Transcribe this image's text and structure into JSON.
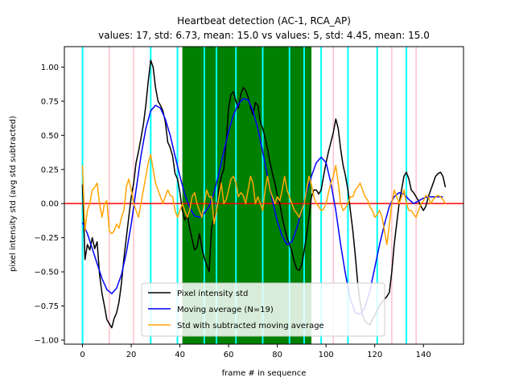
{
  "chart_data": {
    "type": "line",
    "title": "Heartbeat detection (AC-1, RCA_AP)",
    "subtitle": "values: 17, std: 6.73, mean: 15.0 vs values: 5, std: 4.45, mean: 15.0",
    "xlabel": "frame # in sequence",
    "ylabel": "pixel intensity std (avg std subtracted)",
    "xlim": [
      -7.45,
      156.45
    ],
    "ylim": [
      -1.03,
      1.15
    ],
    "x_ticks": [
      0,
      20,
      40,
      60,
      80,
      100,
      120,
      140
    ],
    "y_ticks": [
      -1.0,
      -0.75,
      -0.5,
      -0.25,
      0.0,
      0.25,
      0.5,
      0.75,
      1.0
    ],
    "x_tick_labels": [
      "0",
      "20",
      "40",
      "60",
      "80",
      "100",
      "120",
      "140"
    ],
    "y_tick_labels": [
      "−1.00",
      "−0.75",
      "−0.50",
      "−0.25",
      "0.00",
      "0.25",
      "0.50",
      "0.75",
      "1.00"
    ],
    "grid": false,
    "legend_position": "bottom-center",
    "green_band": [
      41,
      94
    ],
    "cyan_lines": [
      0,
      28,
      39,
      50,
      55,
      63,
      74,
      85,
      91,
      98,
      109,
      121,
      133
    ],
    "pink_lines": [
      11,
      21,
      103,
      127,
      137
    ],
    "zero_line": 0.0,
    "colors": {
      "raw": "#000000",
      "moving_average": "#0000ff",
      "residual": "#ffa500",
      "cyan_lines": "#00ffff",
      "pink_lines": "#ffc0cb",
      "zero_line": "#ff0000",
      "band": "#008000"
    },
    "series": [
      {
        "name": "Pixel intensity std",
        "x": [
          0,
          1,
          2,
          3,
          4,
          5,
          6,
          7,
          8,
          9,
          10,
          11,
          12,
          13,
          14,
          15,
          16,
          17,
          18,
          19,
          20,
          21,
          22,
          23,
          24,
          25,
          26,
          27,
          28,
          29,
          30,
          31,
          32,
          33,
          34,
          35,
          36,
          37,
          38,
          39,
          40,
          41,
          42,
          43,
          44,
          45,
          46,
          47,
          48,
          49,
          50,
          51,
          52,
          53,
          54,
          55,
          56,
          57,
          58,
          59,
          60,
          61,
          62,
          63,
          64,
          65,
          66,
          67,
          68,
          69,
          70,
          71,
          72,
          73,
          74,
          75,
          76,
          77,
          78,
          79,
          80,
          81,
          82,
          83,
          84,
          85,
          86,
          87,
          88,
          89,
          90,
          91,
          92,
          93,
          94,
          95,
          96,
          97,
          98,
          99,
          100,
          101,
          102,
          103,
          104,
          105,
          106,
          107,
          108,
          109,
          110,
          111,
          112,
          113,
          114,
          115,
          116,
          117,
          118,
          119,
          120,
          121,
          122,
          123,
          124,
          125,
          126,
          127,
          128,
          129,
          130,
          131,
          132,
          133,
          134,
          135,
          136,
          137,
          138,
          139,
          140,
          141,
          142,
          143,
          144,
          145,
          146,
          147,
          148,
          149
        ],
        "y": [
          0.14,
          -0.41,
          -0.3,
          -0.34,
          -0.25,
          -0.33,
          -0.28,
          -0.52,
          -0.66,
          -0.75,
          -0.85,
          -0.88,
          -0.91,
          -0.84,
          -0.8,
          -0.72,
          -0.58,
          -0.4,
          -0.25,
          -0.1,
          0.05,
          0.15,
          0.3,
          0.38,
          0.48,
          0.58,
          0.72,
          0.9,
          1.05,
          1.0,
          0.85,
          0.75,
          0.72,
          0.68,
          0.6,
          0.45,
          0.41,
          0.35,
          0.22,
          0.18,
          0.08,
          -0.05,
          -0.12,
          -0.08,
          -0.18,
          -0.26,
          -0.34,
          -0.32,
          -0.22,
          -0.32,
          -0.4,
          -0.45,
          -0.5,
          -0.18,
          -0.1,
          -0.05,
          0.1,
          0.2,
          0.25,
          0.45,
          0.7,
          0.8,
          0.82,
          0.75,
          0.7,
          0.8,
          0.85,
          0.83,
          0.78,
          0.7,
          0.65,
          0.74,
          0.72,
          0.6,
          0.55,
          0.48,
          0.4,
          0.3,
          0.22,
          0.15,
          0.06,
          0.0,
          -0.1,
          -0.18,
          -0.25,
          -0.3,
          -0.35,
          -0.43,
          -0.48,
          -0.49,
          -0.45,
          -0.35,
          -0.23,
          -0.1,
          0.05,
          0.1,
          0.1,
          0.07,
          0.1,
          0.2,
          0.3,
          0.38,
          0.45,
          0.52,
          0.62,
          0.55,
          0.4,
          0.28,
          0.2,
          0.1,
          -0.05,
          -0.2,
          -0.38,
          -0.58,
          -0.72,
          -0.82,
          -0.86,
          -0.88,
          -0.89,
          -0.85,
          -0.82,
          -0.78,
          -0.75,
          -0.72,
          -0.7,
          -0.68,
          -0.65,
          -0.5,
          -0.3,
          -0.15,
          0.0,
          0.1,
          0.2,
          0.23,
          0.18,
          0.1,
          0.08,
          0.05,
          0.02,
          -0.02,
          -0.05,
          -0.02,
          0.05,
          0.1,
          0.15,
          0.2,
          0.22,
          0.23,
          0.2,
          0.12
        ]
      },
      {
        "name": "Moving average (N=19)",
        "x": [
          0,
          2,
          4,
          6,
          8,
          10,
          12,
          14,
          16,
          18,
          20,
          22,
          24,
          26,
          28,
          30,
          32,
          34,
          36,
          38,
          40,
          42,
          44,
          46,
          48,
          50,
          52,
          54,
          56,
          58,
          60,
          62,
          64,
          66,
          68,
          70,
          72,
          74,
          76,
          78,
          80,
          82,
          84,
          86,
          88,
          90,
          92,
          94,
          96,
          98,
          100,
          102,
          104,
          106,
          108,
          110,
          112,
          114,
          116,
          118,
          120,
          122,
          124,
          126,
          128,
          130,
          132,
          134,
          136,
          138,
          140,
          142,
          144,
          146,
          148
        ],
        "y": [
          -0.14,
          -0.22,
          -0.33,
          -0.44,
          -0.55,
          -0.63,
          -0.66,
          -0.62,
          -0.52,
          -0.36,
          -0.15,
          0.1,
          0.35,
          0.55,
          0.68,
          0.72,
          0.7,
          0.62,
          0.5,
          0.35,
          0.2,
          0.07,
          -0.03,
          -0.09,
          -0.1,
          -0.07,
          -0.02,
          0.08,
          0.22,
          0.38,
          0.53,
          0.65,
          0.73,
          0.77,
          0.76,
          0.68,
          0.55,
          0.38,
          0.2,
          0.02,
          -0.13,
          -0.24,
          -0.3,
          -0.28,
          -0.18,
          -0.05,
          0.08,
          0.2,
          0.3,
          0.34,
          0.3,
          0.15,
          -0.05,
          -0.3,
          -0.52,
          -0.7,
          -0.8,
          -0.81,
          -0.76,
          -0.64,
          -0.47,
          -0.3,
          -0.15,
          -0.02,
          0.05,
          0.08,
          0.07,
          0.03,
          0.0,
          0.02,
          0.04,
          0.05,
          0.05,
          0.05,
          0.05
        ]
      },
      {
        "name": "Std with subtracted moving average",
        "x": [
          0,
          1,
          2,
          3,
          4,
          5,
          6,
          7,
          8,
          9,
          10,
          11,
          12,
          13,
          14,
          15,
          16,
          17,
          18,
          19,
          20,
          21,
          22,
          23,
          24,
          25,
          26,
          27,
          28,
          29,
          30,
          31,
          32,
          33,
          34,
          35,
          36,
          37,
          38,
          39,
          40,
          41,
          42,
          43,
          44,
          45,
          46,
          47,
          48,
          49,
          50,
          51,
          52,
          53,
          54,
          55,
          56,
          57,
          58,
          59,
          60,
          61,
          62,
          63,
          64,
          65,
          66,
          67,
          68,
          69,
          70,
          71,
          72,
          73,
          74,
          75,
          76,
          77,
          78,
          79,
          80,
          81,
          82,
          83,
          84,
          85,
          86,
          87,
          88,
          89,
          90,
          91,
          92,
          93,
          94,
          95,
          96,
          97,
          98,
          99,
          100,
          101,
          102,
          103,
          104,
          105,
          106,
          107,
          108,
          109,
          110,
          111,
          112,
          113,
          114,
          115,
          116,
          117,
          118,
          119,
          120,
          121,
          122,
          123,
          124,
          125,
          126,
          127,
          128,
          129,
          130,
          131,
          132,
          133,
          134,
          135,
          136,
          137,
          138,
          139,
          140,
          141,
          142,
          143,
          144,
          145,
          146,
          147,
          148,
          149
        ],
        "y": [
          0.28,
          -0.2,
          -0.05,
          0.0,
          0.1,
          0.12,
          0.15,
          0.0,
          -0.1,
          0.0,
          0.02,
          -0.2,
          -0.22,
          -0.2,
          -0.15,
          -0.18,
          -0.1,
          -0.05,
          0.12,
          0.18,
          0.1,
          0.0,
          -0.05,
          -0.1,
          0.0,
          0.1,
          0.2,
          0.3,
          0.36,
          0.25,
          0.15,
          0.1,
          0.05,
          0.0,
          0.05,
          0.1,
          0.06,
          0.05,
          -0.05,
          -0.1,
          -0.05,
          0.0,
          -0.05,
          -0.1,
          -0.05,
          0.05,
          0.08,
          0.0,
          -0.05,
          -0.1,
          0.0,
          0.1,
          0.05,
          0.05,
          -0.15,
          -0.05,
          0.05,
          0.15,
          0.0,
          0.03,
          0.1,
          0.18,
          0.2,
          0.15,
          0.05,
          0.08,
          0.06,
          0.0,
          0.1,
          0.2,
          0.15,
          0.0,
          0.05,
          0.0,
          -0.05,
          0.1,
          0.2,
          0.1,
          0.05,
          0.0,
          0.05,
          0.02,
          0.1,
          0.2,
          0.1,
          0.05,
          0.0,
          -0.05,
          -0.07,
          -0.1,
          -0.05,
          0.0,
          0.1,
          0.2,
          0.14,
          0.05,
          0.0,
          -0.02,
          -0.05,
          -0.04,
          0.0,
          0.08,
          0.15,
          0.2,
          0.28,
          0.15,
          0.0,
          -0.05,
          -0.03,
          0.0,
          0.05,
          0.05,
          0.1,
          0.12,
          0.15,
          0.1,
          0.05,
          0.03,
          -0.02,
          -0.05,
          -0.1,
          -0.08,
          -0.05,
          -0.1,
          -0.2,
          -0.3,
          -0.15,
          0.0,
          0.1,
          0.05,
          0.0,
          0.05,
          0.1,
          0.0,
          -0.05,
          -0.05,
          -0.08,
          -0.1,
          -0.05,
          0.0,
          0.02,
          0.06,
          0.05,
          0.0,
          0.03,
          0.05,
          0.06,
          0.05,
          0.03,
          0.0
        ]
      }
    ]
  }
}
